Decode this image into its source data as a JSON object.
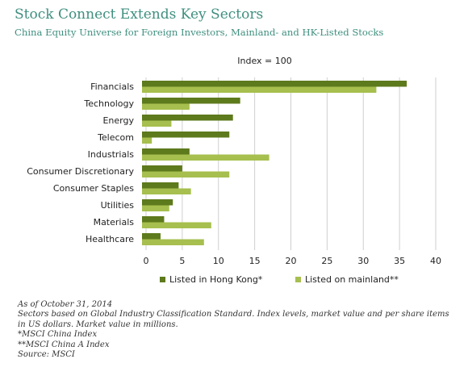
{
  "header": {
    "title": "Stock Connect Extends Key Sectors",
    "subtitle": "China Equity Universe for Foreign Investors, Mainland- and HK-Listed Stocks"
  },
  "chart_data": {
    "type": "bar",
    "orientation": "horizontal",
    "annotation": "Index = 100",
    "categories": [
      "Financials",
      "Technology",
      "Energy",
      "Telecom",
      "Industrials",
      "Consumer Discretionary",
      "Consumer Staples",
      "Utilities",
      "Materials",
      "Healthcare"
    ],
    "series": [
      {
        "name": "Listed in Hong Kong*",
        "color": "#5d7a1c",
        "values": [
          36,
          13,
          12,
          11.5,
          6,
          5,
          4.5,
          3.7,
          2.5,
          2
        ]
      },
      {
        "name": "Listed on mainland**",
        "color": "#a6bf4e",
        "values": [
          31.8,
          6,
          3.5,
          0.8,
          17,
          11.5,
          6.2,
          3.2,
          9,
          8
        ]
      }
    ],
    "xlim": [
      0,
      40
    ],
    "xticks": [
      "0",
      "5",
      "10",
      "15",
      "20",
      "25",
      "30",
      "35",
      "40"
    ],
    "grid": true,
    "legend_position": "bottom"
  },
  "notes": [
    "As of October 31, 2014",
    "Sectors based on Global Industry Classification Standard. Index levels, market value and per share items in US dollars. Market value in millions.",
    "*MSCI China Index",
    "**MSCI China A Index",
    "Source: MSCI"
  ]
}
